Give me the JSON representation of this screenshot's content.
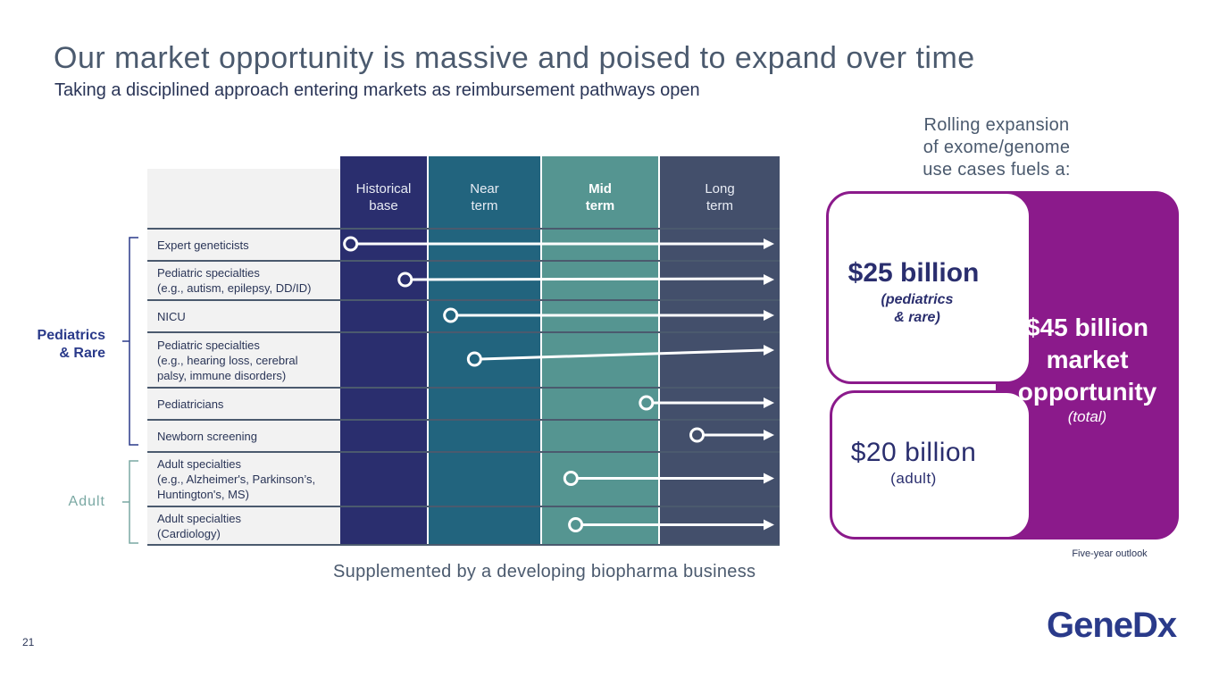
{
  "header": {
    "title": "Our market opportunity is massive and poised to expand over time",
    "subtitle": "Taking a disciplined approach entering markets as reimbursement pathways open"
  },
  "columns": [
    {
      "label": "Historical\nbase",
      "color": "#2a2e6e",
      "bold": false
    },
    {
      "label": "Near\nterm",
      "color": "#22647e",
      "bold": false
    },
    {
      "label": "Mid\nterm",
      "color": "#559591",
      "bold": true
    },
    {
      "label": "Long\nterm",
      "color": "#434f6b",
      "bold": false
    }
  ],
  "rows": [
    {
      "label": "Expert geneticists",
      "start": 0.12
    },
    {
      "label": "Pediatric specialties\n(e.g., autism, epilepsy, DD/ID)",
      "start": 0.75
    },
    {
      "label": "NICU",
      "start": 1.21
    },
    {
      "label": "Pediatric specialties\n(e.g., hearing loss, cerebral\npalsy, immune disorders)",
      "start": 1.42
    },
    {
      "label": "Pediatricians",
      "start": 2.9
    },
    {
      "label": "Newborn screening",
      "start": 3.32
    },
    {
      "label": "Adult specialties\n(e.g., Alzheimer's, Parkinson’s,\nHuntington's, MS)",
      "start": 2.26
    },
    {
      "label": "Adult specialties\n(Cardiology)",
      "start": 2.3
    }
  ],
  "groups": {
    "pediatrics": "Pediatrics\n& Rare",
    "adult": "Adult"
  },
  "supplement": "Supplemented by a developing biopharma business",
  "market": {
    "intro": "Rolling expansion\nof exome/genome\nuse cases fuels a:",
    "peds_amount": "$25 billion",
    "peds_sub": "(pediatrics\n& rare)",
    "adult_amount": "$20 billion",
    "adult_sub": "(adult)",
    "total_amount": "$45 billion\nmarket\nopportunity",
    "total_sub": "(total)",
    "outlook": "Five-year outlook"
  },
  "footer": {
    "page_number": "21",
    "logo": "GeneDx"
  },
  "colors": {
    "accent_purple": "#8b1a8b",
    "navy": "#2a2e6e",
    "adult_teal": "#7aa8a3"
  }
}
